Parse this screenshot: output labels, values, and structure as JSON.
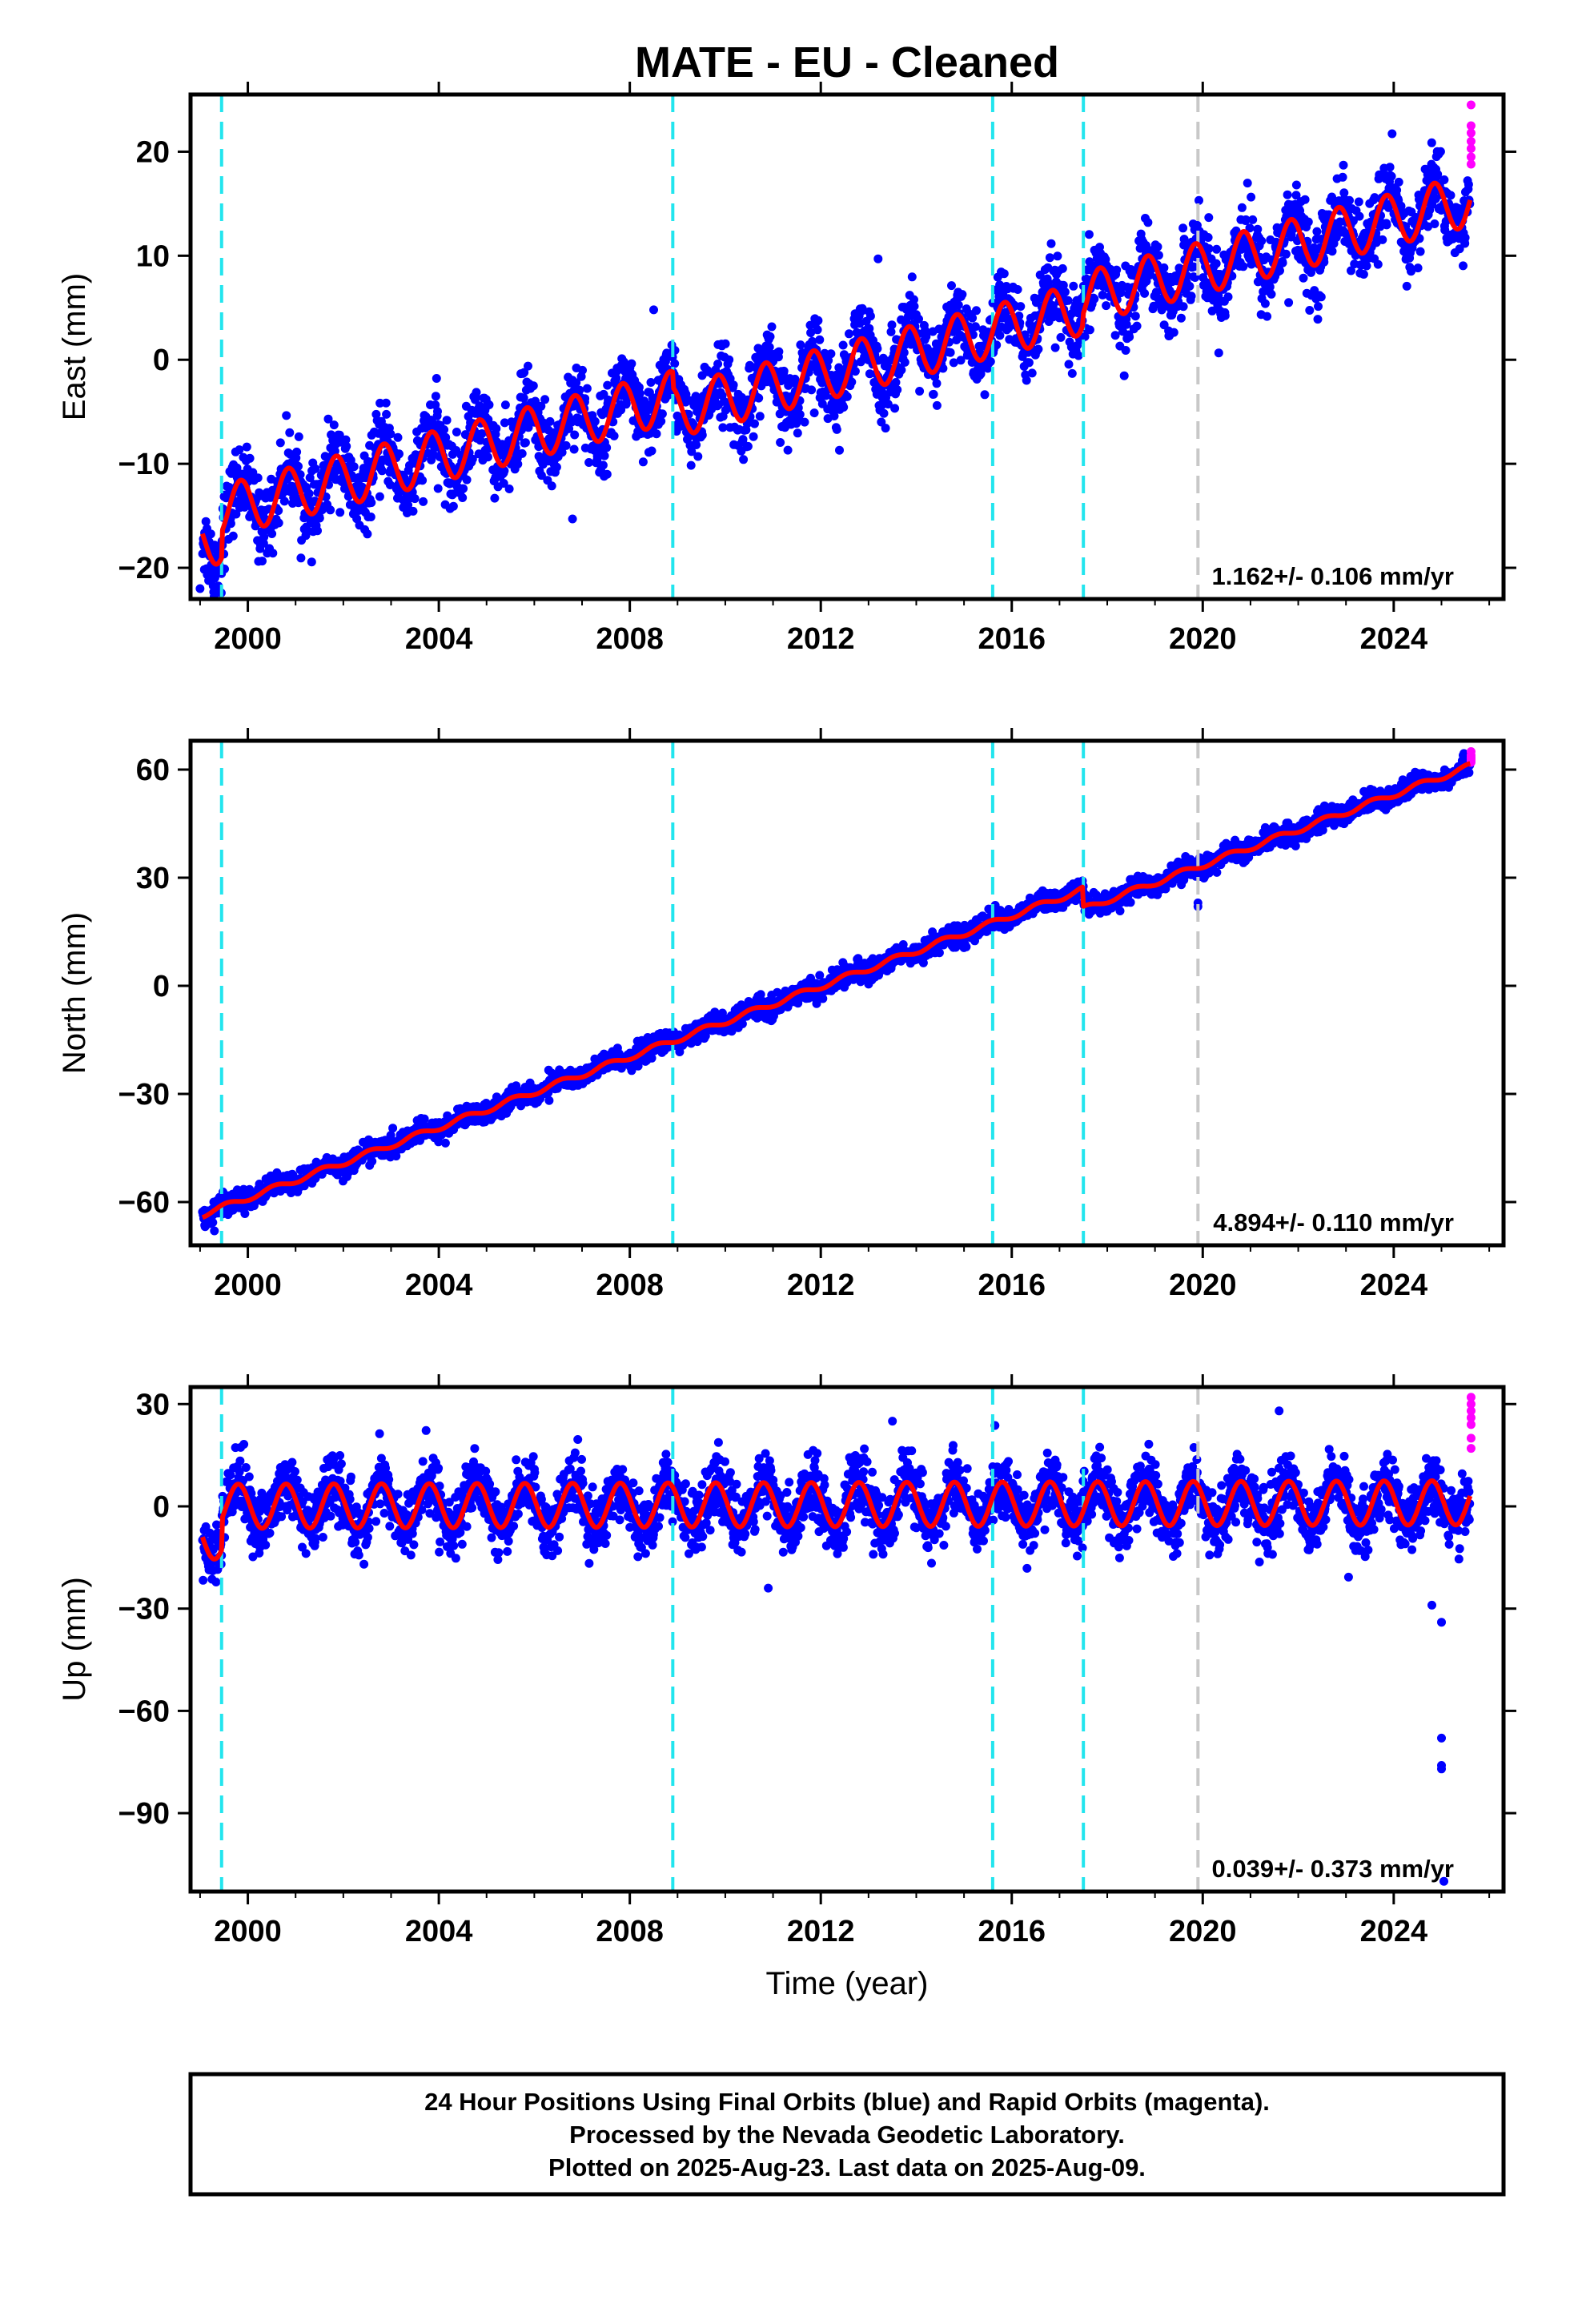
{
  "title": "MATE  - EU - Cleaned",
  "chart_data": [
    {
      "type": "scatter",
      "panel": "east",
      "ylabel": "East (mm)",
      "xlabel": "",
      "xlim": [
        1998.8,
        2026.3
      ],
      "ylim": [
        -23,
        25.5
      ],
      "xticks": [
        2000,
        2004,
        2008,
        2012,
        2016,
        2020,
        2024
      ],
      "yticks": [
        -20,
        -10,
        0,
        10,
        20
      ],
      "rate_text": "1.162+/- 0.106 mm/yr",
      "grid": false,
      "model": {
        "rate": 1.162,
        "annual_amplitude": 2.5,
        "phase": 0.6,
        "start": 1999.05,
        "end": 2025.6,
        "start_value": -17.5
      },
      "offsets": [
        {
          "year": 1999.45,
          "dy": 2.5
        },
        {
          "year": 2008.9,
          "dy": -1.5
        },
        {
          "year": 2017.5,
          "dy": 1.0
        }
      ],
      "scatter_sigma": 1.8,
      "outliers": [
        {
          "x": 1999.0,
          "y": -22
        },
        {
          "x": 2006.8,
          "y": -15.3
        },
        {
          "x": 2013.2,
          "y": 9.7
        },
        {
          "x": 2021.8,
          "y": 5.5
        },
        {
          "x": 2008.5,
          "y": 4.8
        }
      ],
      "rapid_values": [
        24.5,
        22.5,
        21.8,
        21.0,
        20.3,
        19.5,
        18.8
      ],
      "series": [
        {
          "name": "Final Orbits",
          "color": "#0000ff"
        },
        {
          "name": "Rapid Orbits",
          "color": "#ff00ff"
        },
        {
          "name": "Model",
          "color": "#ff0000"
        }
      ]
    },
    {
      "type": "scatter",
      "panel": "north",
      "ylabel": "North (mm)",
      "xlabel": "",
      "xlim": [
        1998.8,
        2026.3
      ],
      "ylim": [
        -72,
        68
      ],
      "xticks": [
        2000,
        2004,
        2008,
        2012,
        2016,
        2020,
        2024
      ],
      "yticks": [
        -60,
        -30,
        0,
        30,
        60
      ],
      "rate_text": "4.894+/- 0.110 mm/yr",
      "grid": false,
      "model": {
        "rate": 4.894,
        "annual_amplitude": 0.8,
        "phase": 0.3,
        "start": 1999.05,
        "end": 2025.6,
        "start_value": -63.5
      },
      "offsets": [
        {
          "year": 2017.5,
          "dy": -5.5
        }
      ],
      "scatter_sigma": 1.4,
      "outliers": [
        {
          "x": 2019.9,
          "y": 22
        },
        {
          "x": 2019.9,
          "y": 23
        },
        {
          "x": 1999.3,
          "y": -68
        }
      ],
      "rapid_values": [
        65,
        64,
        63.5,
        63,
        62.5,
        62
      ],
      "series": [
        {
          "name": "Final Orbits",
          "color": "#0000ff"
        },
        {
          "name": "Rapid Orbits",
          "color": "#ff00ff"
        },
        {
          "name": "Model",
          "color": "#ff0000"
        }
      ]
    },
    {
      "type": "scatter",
      "panel": "up",
      "ylabel": "Up (mm)",
      "xlabel": "Time (year)",
      "xlim": [
        1998.8,
        2026.3
      ],
      "ylim": [
        -113,
        35
      ],
      "xticks": [
        2000,
        2004,
        2008,
        2012,
        2016,
        2020,
        2024
      ],
      "yticks": [
        -90,
        -60,
        -30,
        0,
        30
      ],
      "rate_text": "0.039+/- 0.373 mm/yr",
      "grid": false,
      "model": {
        "rate": 0.039,
        "annual_amplitude": 6.5,
        "phase": 0.55,
        "start": 1999.05,
        "end": 2025.6,
        "start_value": -9.0
      },
      "offsets": [
        {
          "year": 1999.45,
          "dy": 9.0
        }
      ],
      "scatter_sigma": 4.5,
      "outliers": [
        {
          "x": 2025.0,
          "y": -68
        },
        {
          "x": 2025.0,
          "y": -76
        },
        {
          "x": 2025.0,
          "y": -77
        },
        {
          "x": 2025.05,
          "y": -110
        },
        {
          "x": 2025.0,
          "y": -34
        },
        {
          "x": 2024.8,
          "y": -29
        },
        {
          "x": 2010.9,
          "y": -24
        },
        {
          "x": 2021.6,
          "y": 28
        },
        {
          "x": 2013.5,
          "y": 25
        }
      ],
      "rapid_values": [
        32,
        30,
        28,
        26,
        24,
        20,
        17
      ],
      "series": [
        {
          "name": "Final Orbits",
          "color": "#0000ff"
        },
        {
          "name": "Rapid Orbits",
          "color": "#ff00ff"
        },
        {
          "name": "Model",
          "color": "#ff0000"
        }
      ]
    }
  ],
  "event_lines": {
    "cyan_years": [
      1999.45,
      2008.9,
      2015.6,
      2017.5
    ],
    "gray_years": [
      2019.9
    ],
    "cyan_color": "#22e5ee",
    "gray_color": "#c8c8c8"
  },
  "caption": {
    "line1": "24 Hour Positions Using Final Orbits (blue) and Rapid Orbits (magenta).",
    "line2": "Processed by the Nevada Geodetic Laboratory.",
    "line3": "Plotted on 2025-Aug-23. Last data on 2025-Aug-09."
  }
}
